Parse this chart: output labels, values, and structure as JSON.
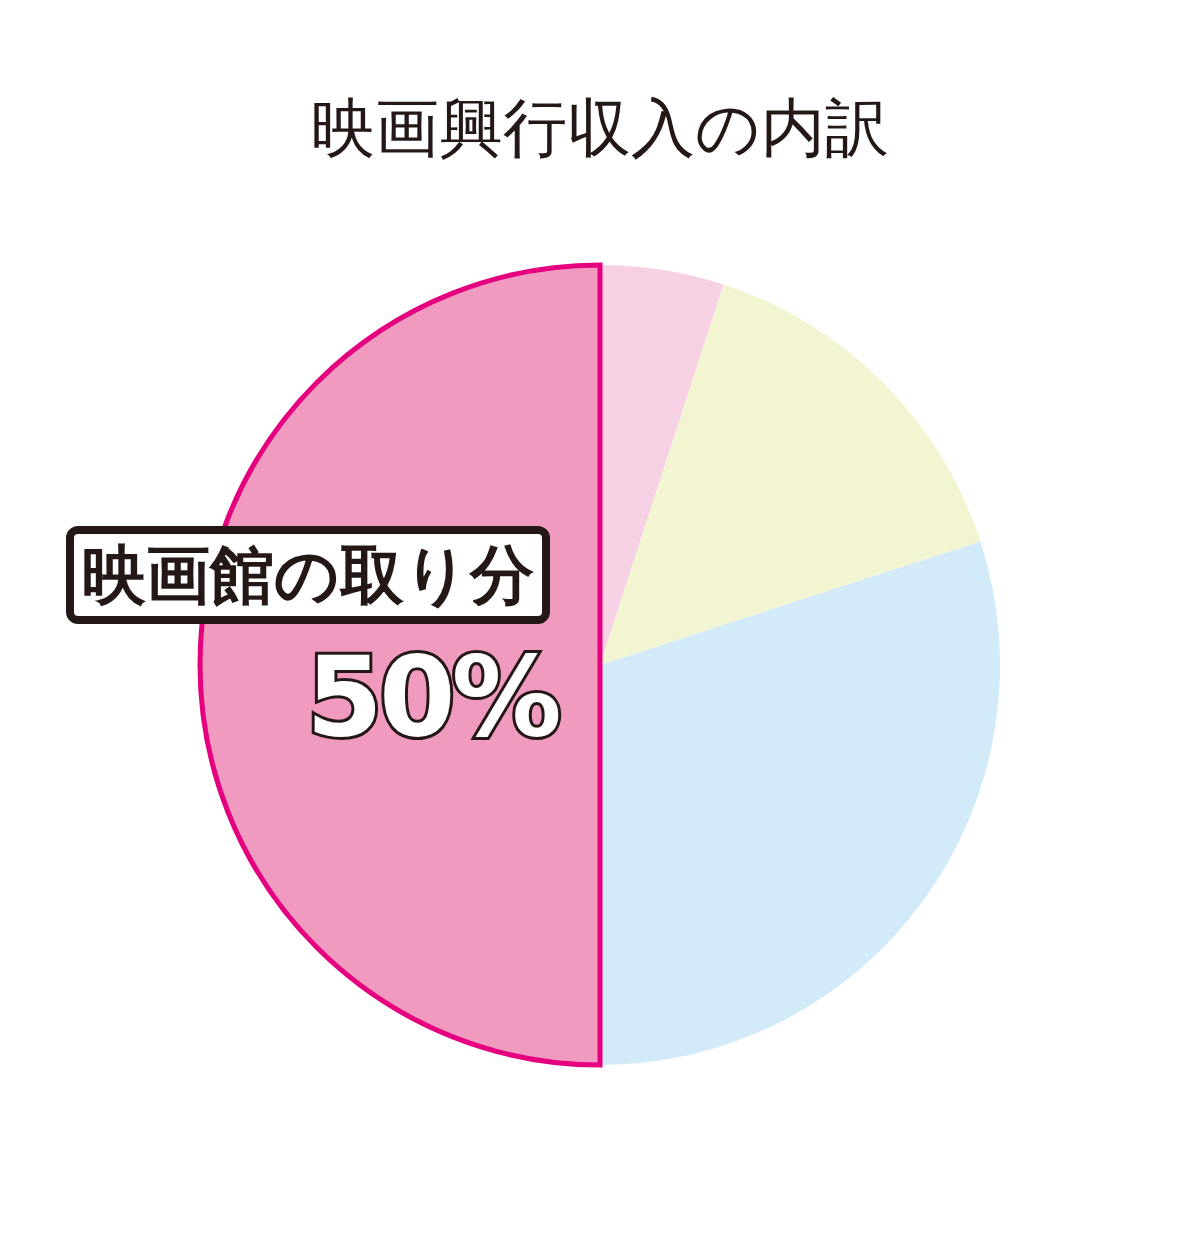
{
  "chart_data": {
    "type": "pie",
    "title": "映画興行収入の内訳",
    "categories": [
      null,
      null,
      null,
      "映画館の取り分"
    ],
    "values": [
      5,
      15,
      30,
      50
    ],
    "colors": [
      "#f6d0e3",
      "#f3f5d2",
      "#d3ebf8",
      "#f09ac0"
    ],
    "value_labels": [
      null,
      null,
      null,
      "50%"
    ]
  }
}
